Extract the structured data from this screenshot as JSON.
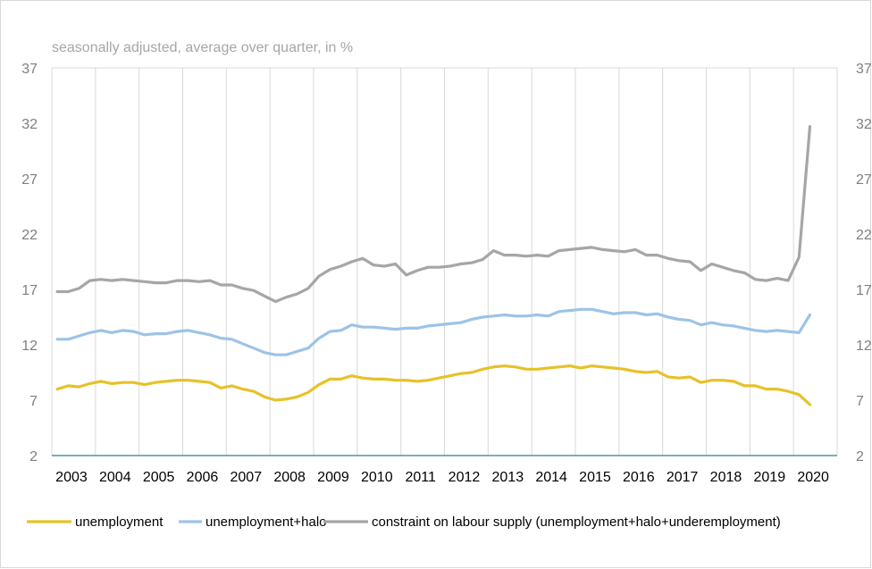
{
  "chart_data": {
    "type": "line",
    "subtitle": "seasonally adjusted, average over quarter, in %",
    "ylim": [
      2,
      37
    ],
    "yticks": [
      2,
      7,
      12,
      17,
      22,
      27,
      32,
      37
    ],
    "x_start": 2002.5,
    "x_end": 2020.5,
    "xtick_labels": [
      "2003",
      "2004",
      "2005",
      "2006",
      "2007",
      "2008",
      "2009",
      "2010",
      "2011",
      "2012",
      "2013",
      "2014",
      "2015",
      "2016",
      "2017",
      "2018",
      "2019",
      "2020"
    ],
    "first_quarter": 2002.625,
    "quarter_step": 0.25,
    "series": [
      {
        "name": "unemployment",
        "color": "#e6c229",
        "values": [
          8.0,
          8.3,
          8.2,
          8.5,
          8.7,
          8.5,
          8.6,
          8.6,
          8.4,
          8.6,
          8.7,
          8.8,
          8.8,
          8.7,
          8.6,
          8.1,
          8.3,
          8.0,
          7.8,
          7.3,
          7.0,
          7.1,
          7.3,
          7.7,
          8.4,
          8.9,
          8.9,
          9.2,
          9.0,
          8.9,
          8.9,
          8.8,
          8.8,
          8.7,
          8.8,
          9.0,
          9.2,
          9.4,
          9.5,
          9.8,
          10.0,
          10.1,
          10.0,
          9.8,
          9.8,
          9.9,
          10.0,
          10.1,
          9.9,
          10.1,
          10.0,
          9.9,
          9.8,
          9.6,
          9.5,
          9.6,
          9.1,
          9.0,
          9.1,
          8.6,
          8.8,
          8.8,
          8.7,
          8.3,
          8.3,
          8.0,
          8.0,
          7.8,
          7.5,
          6.6
        ]
      },
      {
        "name": "unemployment+halo",
        "color": "#9dc3e6",
        "values": [
          12.5,
          12.5,
          12.8,
          13.1,
          13.3,
          13.1,
          13.3,
          13.2,
          12.9,
          13.0,
          13.0,
          13.2,
          13.3,
          13.1,
          12.9,
          12.6,
          12.5,
          12.1,
          11.7,
          11.3,
          11.1,
          11.1,
          11.4,
          11.7,
          12.6,
          13.2,
          13.3,
          13.8,
          13.6,
          13.6,
          13.5,
          13.4,
          13.5,
          13.5,
          13.7,
          13.8,
          13.9,
          14.0,
          14.3,
          14.5,
          14.6,
          14.7,
          14.6,
          14.6,
          14.7,
          14.6,
          15.0,
          15.1,
          15.2,
          15.2,
          15.0,
          14.8,
          14.9,
          14.9,
          14.7,
          14.8,
          14.5,
          14.3,
          14.2,
          13.8,
          14.0,
          13.8,
          13.7,
          13.5,
          13.3,
          13.2,
          13.3,
          13.2,
          13.1,
          14.7
        ]
      },
      {
        "name": "constraint on labour supply (unemployment+halo+underemployment)",
        "color": "#a6a6a6",
        "values": [
          16.8,
          16.8,
          17.1,
          17.8,
          17.9,
          17.8,
          17.9,
          17.8,
          17.7,
          17.6,
          17.6,
          17.8,
          17.8,
          17.7,
          17.8,
          17.4,
          17.4,
          17.1,
          16.9,
          16.4,
          15.9,
          16.3,
          16.6,
          17.1,
          18.2,
          18.8,
          19.1,
          19.5,
          19.8,
          19.2,
          19.1,
          19.3,
          18.3,
          18.7,
          19.0,
          19.0,
          19.1,
          19.3,
          19.4,
          19.7,
          20.5,
          20.1,
          20.1,
          20.0,
          20.1,
          20.0,
          20.5,
          20.6,
          20.7,
          20.8,
          20.6,
          20.5,
          20.4,
          20.6,
          20.1,
          20.1,
          19.8,
          19.6,
          19.5,
          18.7,
          19.3,
          19.0,
          18.7,
          18.5,
          17.9,
          17.8,
          18.0,
          17.8,
          19.9,
          31.7
        ]
      }
    ]
  }
}
